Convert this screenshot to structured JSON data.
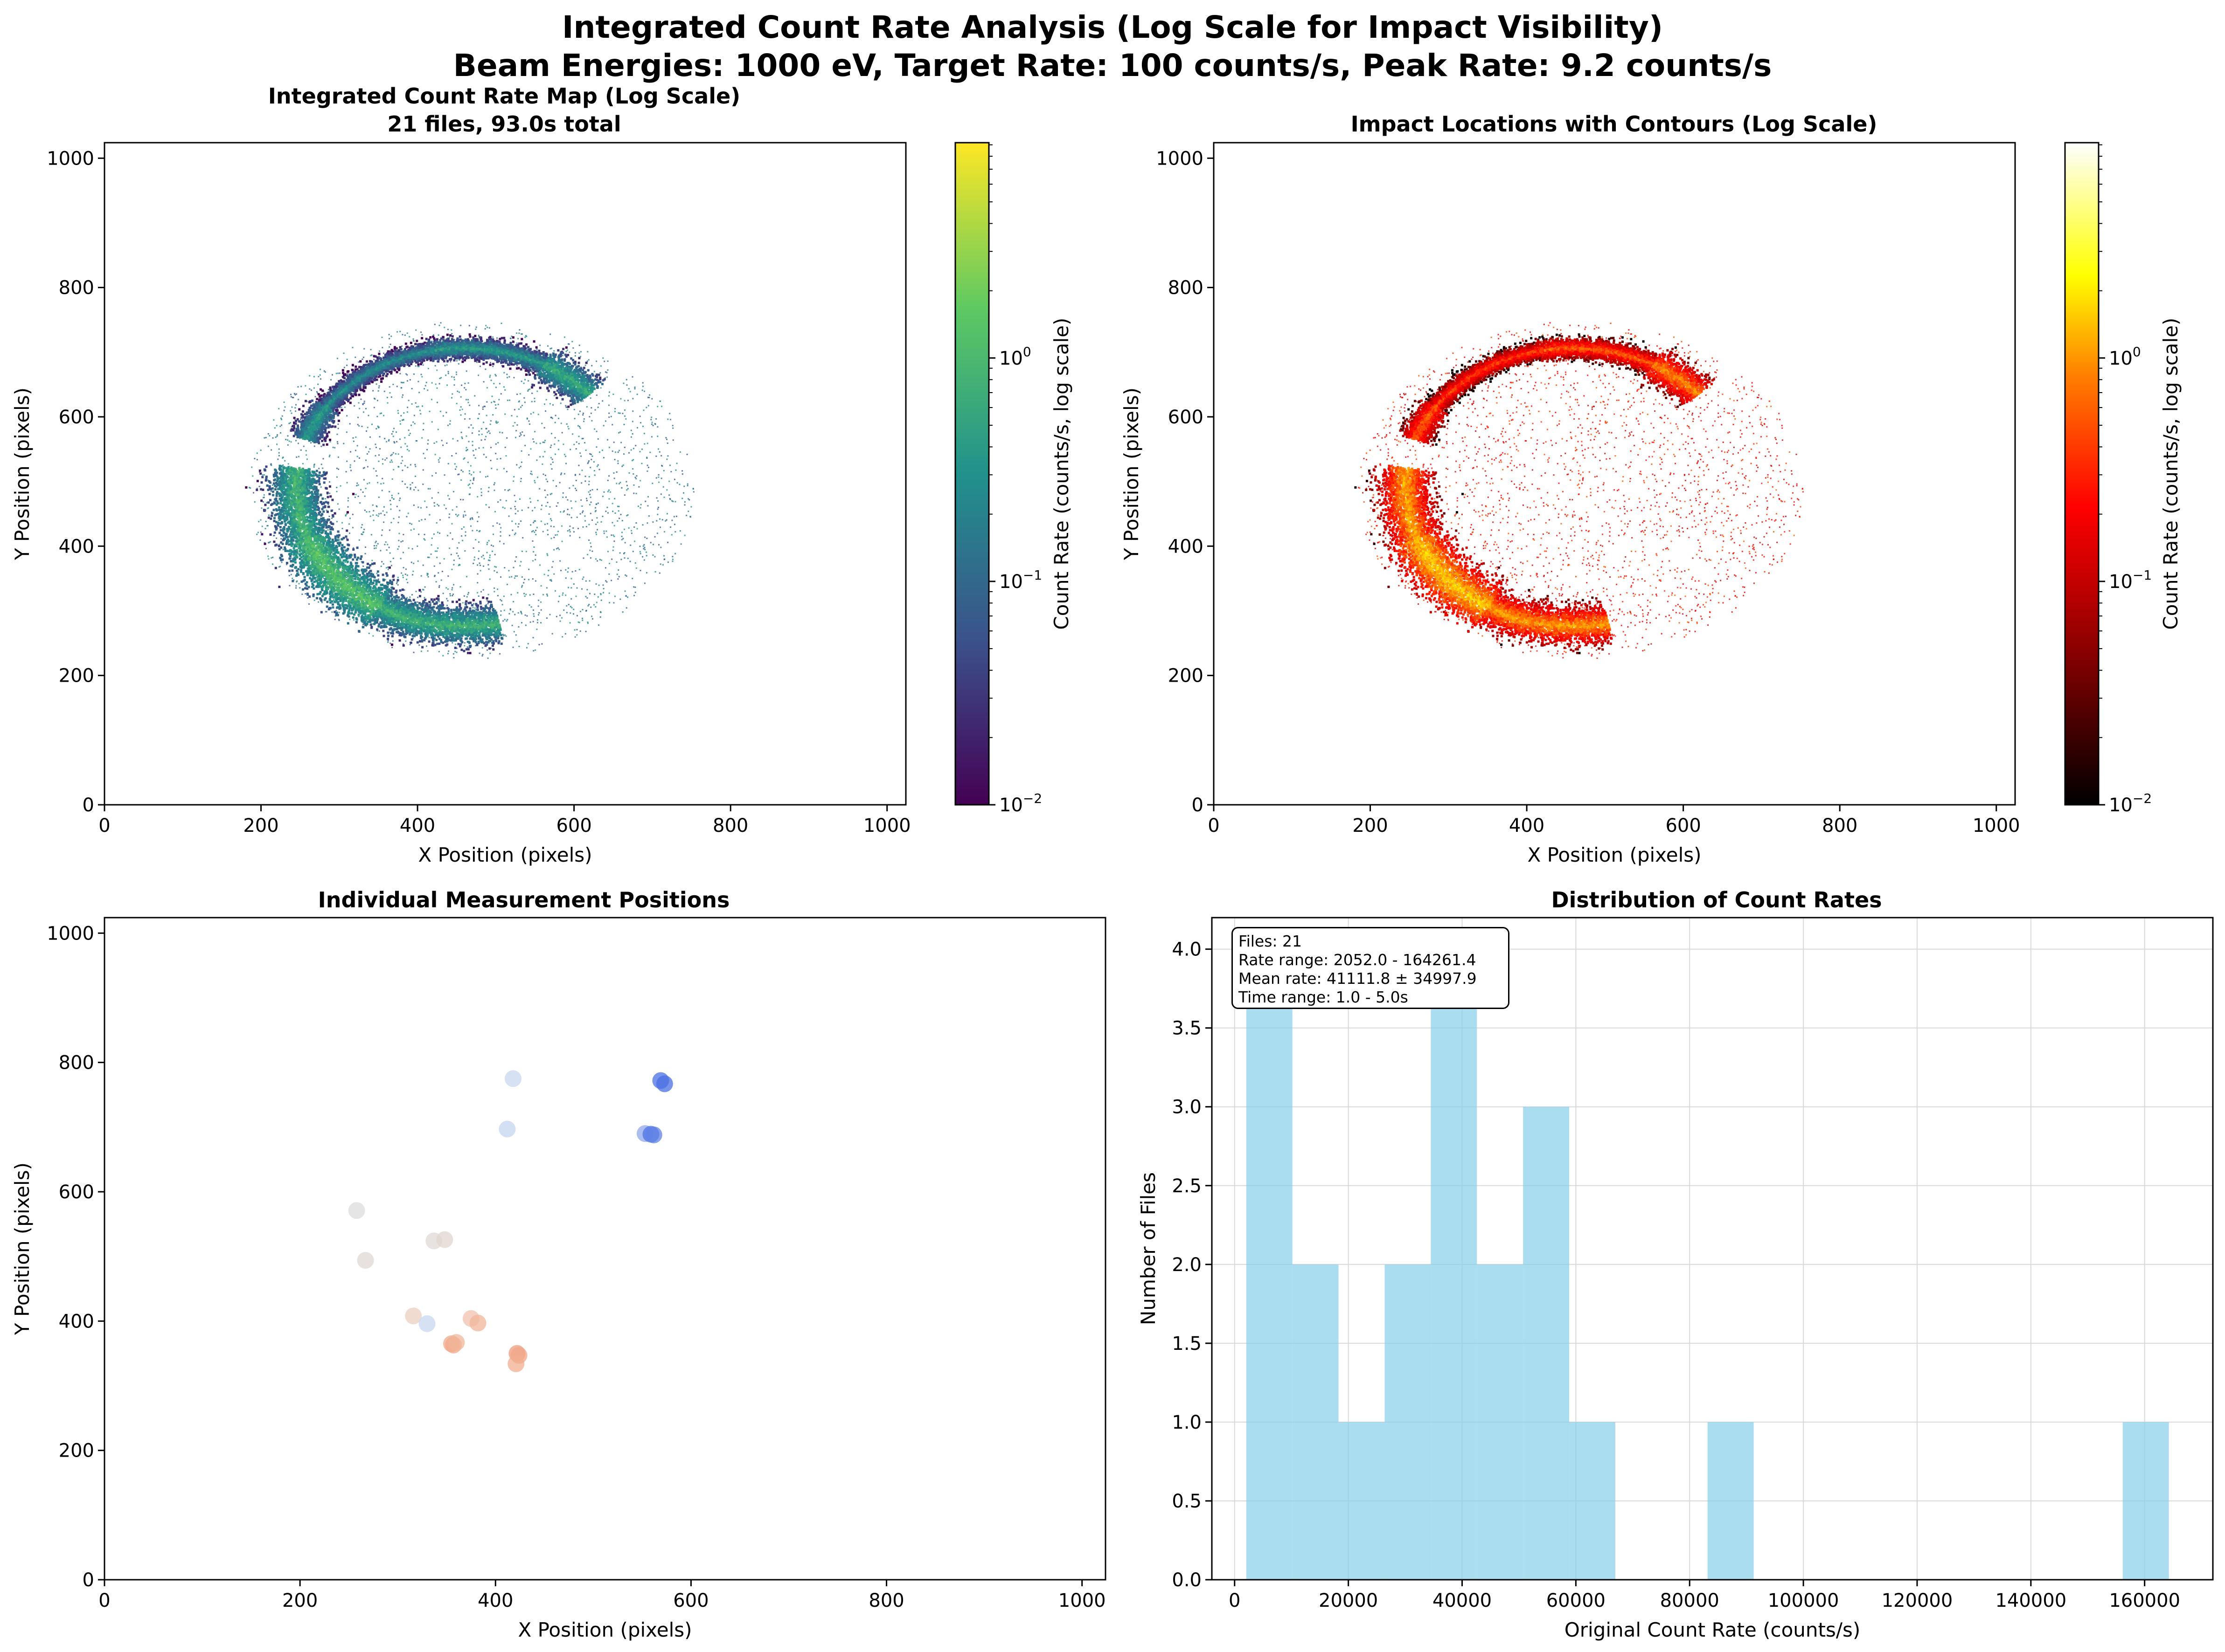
{
  "figure": {
    "title_line1": "Integrated Count Rate Analysis (Log Scale for Impact Visibility)",
    "title_line2": "Beam Energies: 1000 eV, Target Rate: 100 counts/s, Peak Rate: 9.2 counts/s"
  },
  "colors": {
    "viridis": [
      "#440154",
      "#3b528b",
      "#21918c",
      "#5ec962",
      "#fde725"
    ],
    "hot": [
      "#000000",
      "#b00000",
      "#ff0000",
      "#ff8000",
      "#ffff00",
      "#ffffff"
    ],
    "histogram_bar": "#87ceeb"
  },
  "chart_data": [
    {
      "type": "heatmap",
      "title_line1": "Integrated Count Rate Map (Log Scale)",
      "title_line2": "21 files, 93.0s total",
      "xlabel": "X Position (pixels)",
      "ylabel": "Y Position (pixels)",
      "xlim": [
        0,
        1024
      ],
      "ylim": [
        0,
        1024
      ],
      "xticks": [
        "0",
        "200",
        "400",
        "600",
        "800",
        "1000"
      ],
      "yticks": [
        "0",
        "200",
        "400",
        "600",
        "800",
        "1000"
      ],
      "colormap": "viridis",
      "colorbar_label": "Count Rate (counts/s, log scale)",
      "colorbar_range": [
        0.01,
        9.2
      ],
      "colorbar_scale": "log",
      "ring": {
        "center": [
          458,
          493
        ],
        "radius": 215
      }
    },
    {
      "type": "heatmap",
      "title": "Impact Locations with Contours (Log Scale)",
      "xlabel": "X Position (pixels)",
      "ylabel": "Y Position (pixels)",
      "xlim": [
        0,
        1024
      ],
      "ylim": [
        0,
        1024
      ],
      "xticks": [
        "0",
        "200",
        "400",
        "600",
        "800",
        "1000"
      ],
      "yticks": [
        "0",
        "200",
        "400",
        "600",
        "800",
        "1000"
      ],
      "colormap": "hot",
      "colorbar_label": "Count Rate (counts/s, log scale)",
      "colorbar_range": [
        0.01,
        9.2
      ],
      "colorbar_scale": "log"
    },
    {
      "type": "scatter",
      "title": "Individual Measurement Positions",
      "xlabel": "X Position (pixels)",
      "ylabel": "Y Position (pixels)",
      "xlim": [
        0,
        1024
      ],
      "ylim": [
        0,
        1024
      ],
      "xticks": [
        "0",
        "200",
        "400",
        "600",
        "800",
        "1000"
      ],
      "yticks": [
        "0",
        "200",
        "400",
        "600",
        "800",
        "1000"
      ],
      "points": [
        {
          "x": 418,
          "y": 775,
          "color": "#c9d7f0"
        },
        {
          "x": 569,
          "y": 772,
          "color": "#4a6fe3"
        },
        {
          "x": 573,
          "y": 767,
          "color": "#4a6fe3"
        },
        {
          "x": 412,
          "y": 697,
          "color": "#c4d4ef"
        },
        {
          "x": 553,
          "y": 690,
          "color": "#8fa8ea"
        },
        {
          "x": 559,
          "y": 689,
          "color": "#4e72e4"
        },
        {
          "x": 562,
          "y": 688,
          "color": "#6082e6"
        },
        {
          "x": 258,
          "y": 571,
          "color": "#dcdcdc"
        },
        {
          "x": 267,
          "y": 494,
          "color": "#e2d7d2"
        },
        {
          "x": 337,
          "y": 524,
          "color": "#e0d9d6"
        },
        {
          "x": 348,
          "y": 526,
          "color": "#e2d6d0"
        },
        {
          "x": 316,
          "y": 408,
          "color": "#ebcfc2"
        },
        {
          "x": 330,
          "y": 396,
          "color": "#c9d7f0"
        },
        {
          "x": 375,
          "y": 404,
          "color": "#f0c2ad"
        },
        {
          "x": 382,
          "y": 397,
          "color": "#f0b699"
        },
        {
          "x": 355,
          "y": 365,
          "color": "#f1a98a"
        },
        {
          "x": 357,
          "y": 363,
          "color": "#f1a98a"
        },
        {
          "x": 360,
          "y": 367,
          "color": "#f0b699"
        },
        {
          "x": 422,
          "y": 350,
          "color": "#ee9d7f"
        },
        {
          "x": 424,
          "y": 347,
          "color": "#f2a588"
        },
        {
          "x": 421,
          "y": 334,
          "color": "#f2ad90"
        }
      ]
    },
    {
      "type": "bar",
      "title": "Distribution of Count Rates",
      "xlabel": "Original Count Rate (counts/s)",
      "ylabel": "Number of Files",
      "xlim": [
        -4000,
        172000
      ],
      "ylim": [
        0,
        4.2
      ],
      "xticks": [
        0,
        20000,
        40000,
        60000,
        80000,
        100000,
        120000,
        140000,
        160000
      ],
      "yticks": [
        "0.0",
        "0.5",
        "1.0",
        "1.5",
        "2.0",
        "2.5",
        "3.0",
        "3.5",
        "4.0"
      ],
      "grid": true,
      "bin_edges": [
        2052.0,
        10162.5,
        18273.0,
        26383.4,
        34493.9,
        42604.4,
        50714.9,
        58825.4,
        66935.9,
        75046.3,
        83156.8,
        91267.3,
        99377.8,
        107488.3,
        115598.8,
        123709.2,
        131819.7,
        139930.2,
        148040.7,
        156150.9,
        164261.4
      ],
      "counts": [
        4,
        2,
        1,
        2,
        4,
        2,
        3,
        1,
        0,
        0,
        1,
        0,
        0,
        0,
        0,
        0,
        0,
        0,
        0,
        1
      ],
      "stats": {
        "files": "Files: 21",
        "rate_range": "Rate range: 2052.0 - 164261.4",
        "mean_rate": "Mean rate: 41111.8 ± 34997.9",
        "time_range": "Time range: 1.0 - 5.0s"
      },
      "stats_position": "top-left"
    }
  ]
}
